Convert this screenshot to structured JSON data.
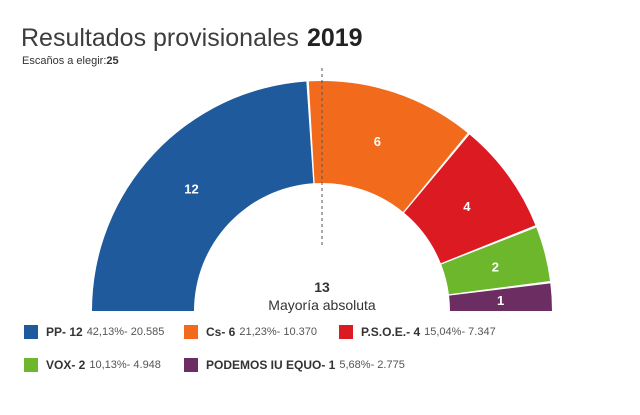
{
  "header": {
    "title": "Resultados provisionales",
    "year": "2019",
    "seats_label": "Escaños a elegir:",
    "seats_total": "25"
  },
  "chart_data": {
    "type": "pie",
    "variant": "parliament-semicircle",
    "total_seats": 25,
    "majority_seats": "13",
    "majority_label": "Mayoría absoluta",
    "series": [
      {
        "name": "PP",
        "legend": "PP- 12",
        "seats": 12,
        "seats_label": "12",
        "pct": "42,13%",
        "votes": "- 20.585",
        "color": "#1e5a9c"
      },
      {
        "name": "Cs",
        "legend": "Cs- 6",
        "seats": 6,
        "seats_label": "6",
        "pct": "21,23%",
        "votes": "- 10.370",
        "color": "#f26a1b"
      },
      {
        "name": "P.S.O.E.",
        "legend": "P.S.O.E.- 4",
        "seats": 4,
        "seats_label": "4",
        "pct": "15,04%",
        "votes": "- 7.347",
        "color": "#dc1a22"
      },
      {
        "name": "VOX",
        "legend": "VOX- 2",
        "seats": 2,
        "seats_label": "2",
        "pct": "10,13%",
        "votes": "- 4.948",
        "color": "#6cb72c"
      },
      {
        "name": "PODEMOS IU EQUO",
        "legend": "PODEMOS IU EQUO- 1",
        "seats": 1,
        "seats_label": "1",
        "pct": "5,68%",
        "votes": "- 2.775",
        "color": "#6b2d62"
      }
    ]
  }
}
